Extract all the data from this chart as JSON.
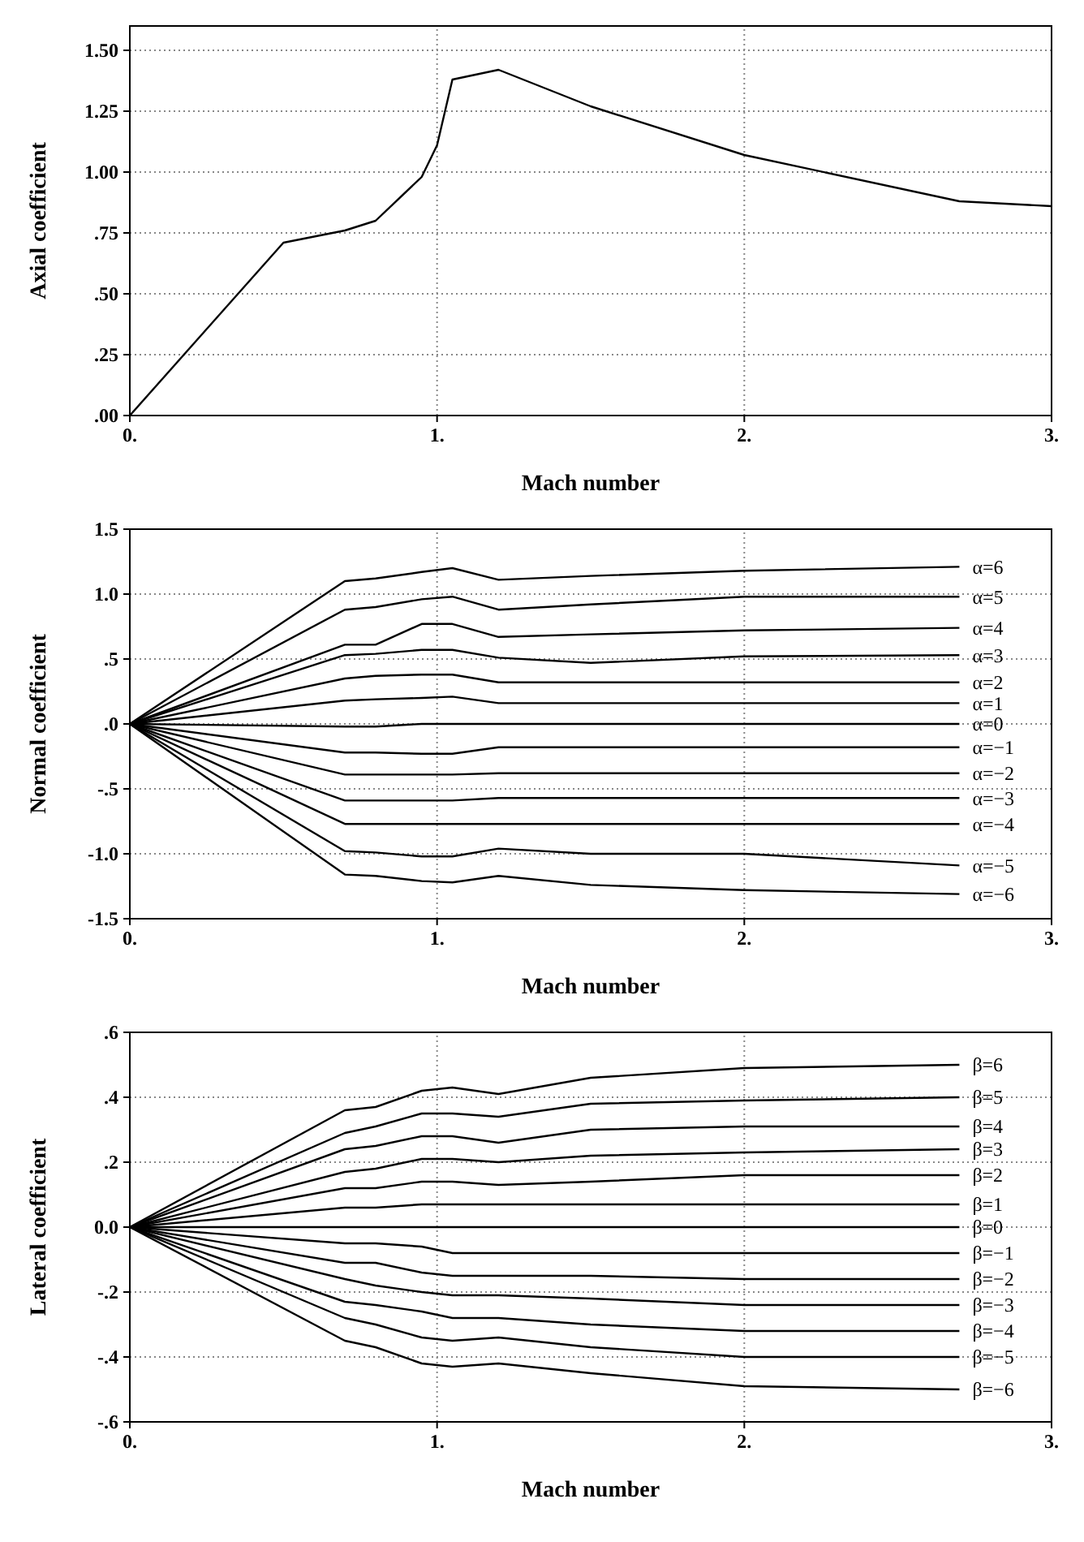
{
  "chart_data": [
    {
      "type": "line",
      "xlabel": "Mach number",
      "ylabel": "Axial coefficient",
      "xlim": [
        0,
        3
      ],
      "ylim": [
        0,
        1.6
      ],
      "xticks": [
        {
          "value": 0,
          "label": "0."
        },
        {
          "value": 1,
          "label": "1."
        },
        {
          "value": 2,
          "label": "2."
        },
        {
          "value": 3,
          "label": "3."
        }
      ],
      "yticks": [
        {
          "value": 0,
          "label": ".00"
        },
        {
          "value": 0.25,
          "label": ".25"
        },
        {
          "value": 0.5,
          "label": ".50"
        },
        {
          "value": 0.75,
          "label": ".75"
        },
        {
          "value": 1,
          "label": "1.00"
        },
        {
          "value": 1.25,
          "label": "1.25"
        },
        {
          "value": 1.5,
          "label": "1.50"
        }
      ],
      "grid": true,
      "x": [
        0,
        0.5,
        0.7,
        0.8,
        0.95,
        1.0,
        1.05,
        1.2,
        1.5,
        2.0,
        2.7,
        3.0
      ],
      "series": [
        {
          "color": "#000000",
          "values": [
            0,
            0.71,
            0.76,
            0.8,
            0.98,
            1.11,
            1.38,
            1.42,
            1.27,
            1.07,
            0.88,
            0.86
          ]
        }
      ]
    },
    {
      "type": "line",
      "xlabel": "Mach number",
      "ylabel": "Normal coefficient",
      "xlim": [
        0,
        3
      ],
      "ylim": [
        -1.5,
        1.5
      ],
      "xticks": [
        {
          "value": 0,
          "label": "0."
        },
        {
          "value": 1,
          "label": "1."
        },
        {
          "value": 2,
          "label": "2."
        },
        {
          "value": 3,
          "label": "3."
        }
      ],
      "yticks": [
        {
          "value": 1.5,
          "label": "1.5"
        },
        {
          "value": 1,
          "label": "1.0"
        },
        {
          "value": 0.5,
          "label": ".5"
        },
        {
          "value": 0,
          "label": ".0"
        },
        {
          "value": -0.5,
          "label": "-.5"
        },
        {
          "value": -1,
          "label": "-1.0"
        },
        {
          "value": -1.5,
          "label": "-1.5"
        }
      ],
      "grid": true,
      "x": [
        0,
        0.7,
        0.8,
        0.95,
        1.05,
        1.2,
        1.5,
        2.0,
        2.7
      ],
      "series": [
        {
          "name": "α=6",
          "color": "#000000",
          "values": [
            0,
            1.1,
            1.12,
            1.17,
            1.2,
            1.11,
            1.14,
            1.18,
            1.21
          ]
        },
        {
          "name": "α=5",
          "color": "#000000",
          "values": [
            0,
            0.88,
            0.9,
            0.96,
            0.98,
            0.88,
            0.92,
            0.98,
            0.98
          ]
        },
        {
          "name": "α=4",
          "color": "#000000",
          "values": [
            0,
            0.61,
            0.61,
            0.77,
            0.77,
            0.67,
            0.69,
            0.72,
            0.74
          ]
        },
        {
          "name": "α=3",
          "color": "#000000",
          "values": [
            0,
            0.53,
            0.54,
            0.57,
            0.57,
            0.51,
            0.47,
            0.52,
            0.53
          ]
        },
        {
          "name": "α=2",
          "color": "#000000",
          "values": [
            0,
            0.35,
            0.37,
            0.38,
            0.38,
            0.32,
            0.32,
            0.32,
            0.32
          ]
        },
        {
          "name": "α=1",
          "color": "#000000",
          "values": [
            0,
            0.18,
            0.19,
            0.2,
            0.21,
            0.16,
            0.16,
            0.16,
            0.16
          ]
        },
        {
          "name": "α=0",
          "color": "#000000",
          "values": [
            0,
            -0.02,
            -0.02,
            0,
            0,
            0,
            0,
            0,
            0
          ]
        },
        {
          "name": "α=−1",
          "color": "#000000",
          "values": [
            0,
            -0.22,
            -0.22,
            -0.23,
            -0.23,
            -0.18,
            -0.18,
            -0.18,
            -0.18
          ]
        },
        {
          "name": "α=−2",
          "color": "#000000",
          "values": [
            0,
            -0.39,
            -0.39,
            -0.39,
            -0.39,
            -0.38,
            -0.38,
            -0.38,
            -0.38
          ]
        },
        {
          "name": "α=−3",
          "color": "#000000",
          "values": [
            0,
            -0.59,
            -0.59,
            -0.59,
            -0.59,
            -0.57,
            -0.57,
            -0.57,
            -0.57
          ]
        },
        {
          "name": "α=−4",
          "color": "#000000",
          "values": [
            0,
            -0.77,
            -0.77,
            -0.77,
            -0.77,
            -0.77,
            -0.77,
            -0.77,
            -0.77
          ]
        },
        {
          "name": "α=−5",
          "color": "#000000",
          "values": [
            0,
            -0.98,
            -0.99,
            -1.02,
            -1.02,
            -0.96,
            -1.0,
            -1.0,
            -1.09
          ]
        },
        {
          "name": "α=−6",
          "color": "#000000",
          "values": [
            0,
            -1.16,
            -1.17,
            -1.21,
            -1.22,
            -1.17,
            -1.24,
            -1.28,
            -1.31
          ]
        }
      ]
    },
    {
      "type": "line",
      "xlabel": "Mach number",
      "ylabel": "Lateral coefficient",
      "xlim": [
        0,
        3
      ],
      "ylim": [
        -0.6,
        0.6
      ],
      "xticks": [
        {
          "value": 0,
          "label": "0."
        },
        {
          "value": 1,
          "label": "1."
        },
        {
          "value": 2,
          "label": "2."
        },
        {
          "value": 3,
          "label": "3."
        }
      ],
      "yticks": [
        {
          "value": 0.6,
          "label": ".6"
        },
        {
          "value": 0.4,
          "label": ".4"
        },
        {
          "value": 0.2,
          "label": ".2"
        },
        {
          "value": 0,
          "label": "0.0"
        },
        {
          "value": -0.2,
          "label": "-.2"
        },
        {
          "value": -0.4,
          "label": "-.4"
        },
        {
          "value": -0.6,
          "label": "-.6"
        }
      ],
      "grid": true,
      "x": [
        0,
        0.7,
        0.8,
        0.95,
        1.05,
        1.2,
        1.5,
        2.0,
        2.7
      ],
      "series": [
        {
          "name": "β=6",
          "color": "#000000",
          "values": [
            0,
            0.36,
            0.37,
            0.42,
            0.43,
            0.41,
            0.46,
            0.49,
            0.5
          ]
        },
        {
          "name": "β=5",
          "color": "#000000",
          "values": [
            0,
            0.29,
            0.31,
            0.35,
            0.35,
            0.34,
            0.38,
            0.39,
            0.4
          ]
        },
        {
          "name": "β=4",
          "color": "#000000",
          "values": [
            0,
            0.24,
            0.25,
            0.28,
            0.28,
            0.26,
            0.3,
            0.31,
            0.31
          ]
        },
        {
          "name": "β=3",
          "color": "#000000",
          "values": [
            0,
            0.17,
            0.18,
            0.21,
            0.21,
            0.2,
            0.22,
            0.23,
            0.24
          ]
        },
        {
          "name": "β=2",
          "color": "#000000",
          "values": [
            0,
            0.12,
            0.12,
            0.14,
            0.14,
            0.13,
            0.14,
            0.16,
            0.16
          ]
        },
        {
          "name": "β=1",
          "color": "#000000",
          "values": [
            0,
            0.06,
            0.06,
            0.07,
            0.07,
            0.07,
            0.07,
            0.07,
            0.07
          ]
        },
        {
          "name": "β=0",
          "color": "#000000",
          "values": [
            0,
            0,
            0,
            0,
            0,
            0,
            0,
            0,
            0
          ]
        },
        {
          "name": "β=−1",
          "color": "#000000",
          "values": [
            0,
            -0.05,
            -0.05,
            -0.06,
            -0.08,
            -0.08,
            -0.08,
            -0.08,
            -0.08
          ]
        },
        {
          "name": "β=−2",
          "color": "#000000",
          "values": [
            0,
            -0.11,
            -0.11,
            -0.14,
            -0.15,
            -0.15,
            -0.15,
            -0.16,
            -0.16
          ]
        },
        {
          "name": "β=−3",
          "color": "#000000",
          "values": [
            0,
            -0.16,
            -0.18,
            -0.2,
            -0.21,
            -0.21,
            -0.22,
            -0.24,
            -0.24
          ]
        },
        {
          "name": "β=−4",
          "color": "#000000",
          "values": [
            0,
            -0.23,
            -0.24,
            -0.26,
            -0.28,
            -0.28,
            -0.3,
            -0.32,
            -0.32
          ]
        },
        {
          "name": "β=−5",
          "color": "#000000",
          "values": [
            0,
            -0.28,
            -0.3,
            -0.34,
            -0.35,
            -0.34,
            -0.37,
            -0.4,
            -0.4
          ]
        },
        {
          "name": "β=−6",
          "color": "#000000",
          "values": [
            0,
            -0.35,
            -0.37,
            -0.42,
            -0.43,
            -0.42,
            -0.45,
            -0.49,
            -0.5
          ]
        }
      ]
    }
  ]
}
